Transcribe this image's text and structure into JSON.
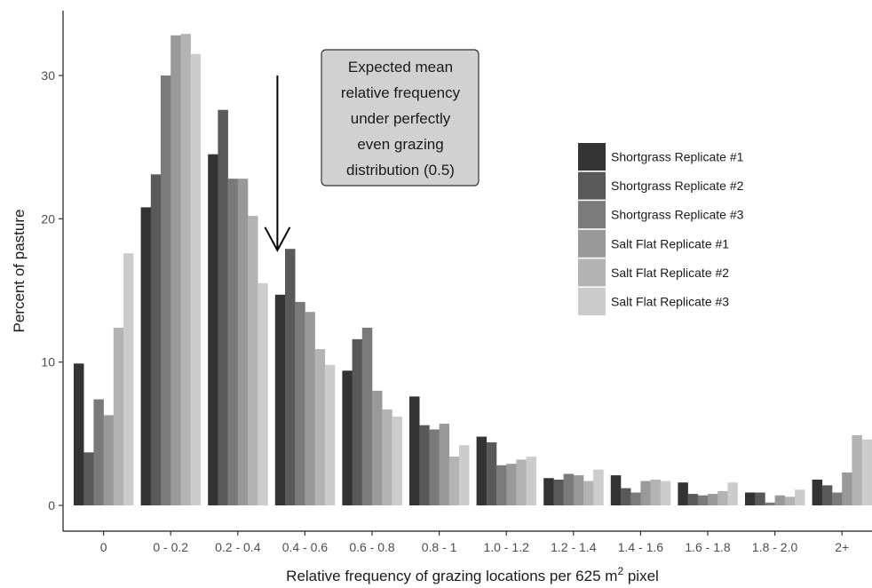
{
  "chart_data": {
    "type": "bar",
    "title": "",
    "xlabel": "Relative frequency of grazing locations per 625 m",
    "xlabel_superscript": "2",
    "xlabel_suffix": " pixel",
    "ylabel": "Percent of pasture",
    "ylim": [
      0,
      33
    ],
    "yticks": [
      0,
      10,
      20,
      30
    ],
    "grid": false,
    "legend_position": "right",
    "categories": [
      "0",
      "0 - 0.2",
      "0.2 - 0.4",
      "0.4 - 0.6",
      "0.6 - 0.8",
      "0.8 - 1",
      "1.0 - 1.2",
      "1.2 - 1.4",
      "1.4 - 1.6",
      "1.6 - 1.8",
      "1.8 - 2.0",
      "2+"
    ],
    "series": [
      {
        "name": "Shortgrass Replicate #1",
        "color": "#333333",
        "values": [
          9.9,
          20.8,
          24.5,
          14.7,
          9.4,
          7.6,
          4.8,
          1.9,
          2.1,
          1.6,
          0.9,
          1.8
        ]
      },
      {
        "name": "Shortgrass Replicate #2",
        "color": "#595959",
        "values": [
          3.7,
          23.1,
          27.6,
          17.9,
          11.6,
          5.6,
          4.4,
          1.8,
          1.2,
          0.8,
          0.9,
          1.4
        ]
      },
      {
        "name": "Shortgrass Replicate #3",
        "color": "#7a7a7a",
        "values": [
          7.4,
          30.0,
          22.8,
          14.2,
          12.4,
          5.3,
          2.8,
          2.2,
          0.9,
          0.7,
          0.2,
          0.9
        ]
      },
      {
        "name": "Salt Flat Replicate #1",
        "color": "#999999",
        "values": [
          6.3,
          32.8,
          22.8,
          13.5,
          8.0,
          5.7,
          2.9,
          2.1,
          1.7,
          0.8,
          0.7,
          2.3
        ]
      },
      {
        "name": "Salt Flat Replicate #2",
        "color": "#b3b3b3",
        "values": [
          12.4,
          32.9,
          20.2,
          10.9,
          6.7,
          3.4,
          3.2,
          1.7,
          1.8,
          1.0,
          0.6,
          4.9
        ]
      },
      {
        "name": "Salt Flat Replicate #3",
        "color": "#cccccc",
        "values": [
          17.6,
          31.5,
          15.5,
          9.8,
          6.2,
          4.2,
          3.4,
          2.5,
          1.7,
          1.6,
          1.1,
          4.6
        ]
      }
    ],
    "annotation": {
      "lines": [
        "Expected mean",
        "relative frequency",
        "under perfectly",
        "even grazing",
        "distribution (0.5)"
      ],
      "arrow_x_category_index": 3,
      "arrow_y_top": 30,
      "arrow_y_bottom": 17.8
    }
  }
}
